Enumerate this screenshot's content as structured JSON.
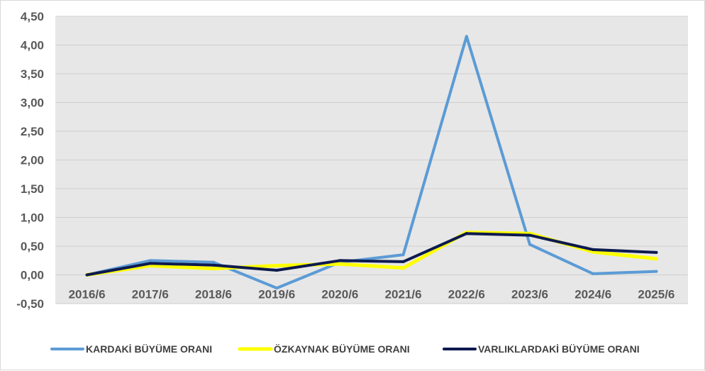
{
  "chart_data": {
    "type": "line",
    "title": "",
    "xlabel": "",
    "ylabel": "",
    "categories": [
      "2016/6",
      "2017/6",
      "2018/6",
      "2019/6",
      "2020/6",
      "2021/6",
      "2022/6",
      "2023/6",
      "2024/6",
      "2025/6"
    ],
    "y_ticks": [
      "-0,50",
      "0,00",
      "0,50",
      "1,00",
      "1,50",
      "2,00",
      "2,50",
      "3,00",
      "3,50",
      "4,00",
      "4,50"
    ],
    "ylim": [
      -0.5,
      4.5
    ],
    "grid": true,
    "legend_position": "bottom",
    "plot_background": "#e7e7e7",
    "series": [
      {
        "name": "KARDAKİ BÜYÜME ORANI",
        "color": "#5b9bd5",
        "values": [
          0.0,
          0.25,
          0.22,
          -0.23,
          0.22,
          0.35,
          4.15,
          0.53,
          0.02,
          0.06
        ]
      },
      {
        "name": "ÖZKAYNAK BÜYÜME ORANI",
        "color": "#ffff00",
        "values": [
          0.0,
          0.16,
          0.11,
          0.16,
          0.19,
          0.12,
          0.74,
          0.72,
          0.4,
          0.28
        ]
      },
      {
        "name": "VARLIKLARDAKİ BÜYÜME ORANI",
        "color": "#0d1a4f",
        "values": [
          0.0,
          0.2,
          0.17,
          0.08,
          0.25,
          0.23,
          0.72,
          0.69,
          0.44,
          0.39
        ]
      }
    ]
  }
}
